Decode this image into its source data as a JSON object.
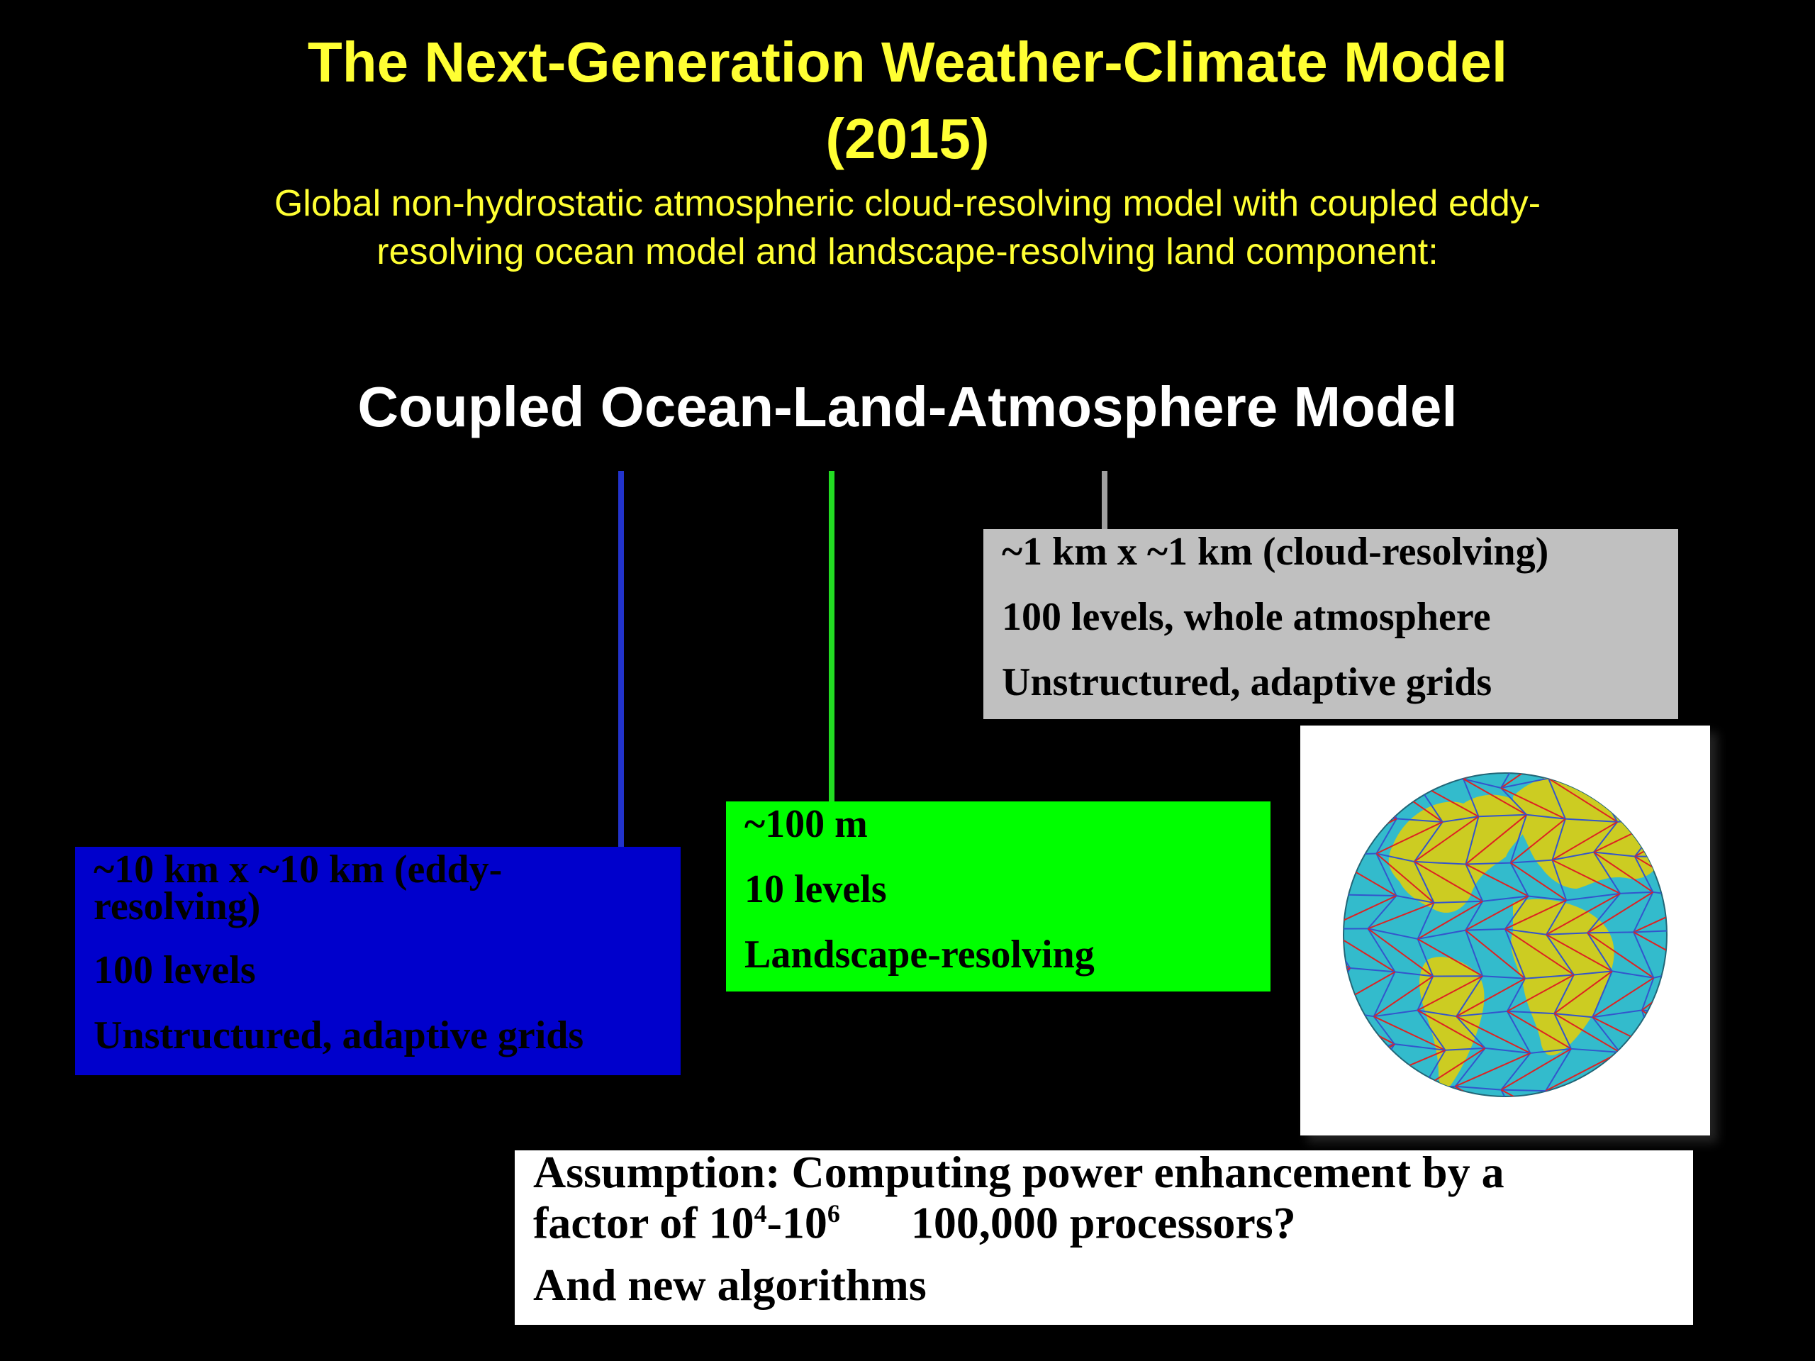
{
  "title": {
    "line1": "The Next-Generation Weather-Climate Model",
    "line2": "(2015)"
  },
  "subtitle": {
    "line1": "Global non-hydrostatic atmospheric cloud-resolving model with coupled eddy-",
    "line2": "resolving ocean model and landscape-resolving land component:"
  },
  "heading": "Coupled Ocean-Land-Atmosphere Model",
  "atmosphere_box": {
    "color": "#c0c0c0",
    "lines": [
      "~1 km x ~1 km (cloud-resolving)",
      "100 levels, whole atmosphere",
      "Unstructured, adaptive grids"
    ]
  },
  "land_box": {
    "color": "#00ff00",
    "lines": [
      "~100 m",
      "10 levels",
      "Landscape-resolving"
    ]
  },
  "ocean_box": {
    "color": "#0000cc",
    "lines": [
      "~10 km x ~10 km (eddy-",
      "resolving)",
      "100 levels",
      "Unstructured, adaptive grids"
    ]
  },
  "assumption_box": {
    "line1": "Assumption: Computing power enhancement by a",
    "line2_prefix": "factor of 10",
    "sup1": "4",
    "line2_mid": "-10",
    "sup2": "6",
    "line2_suffix": "100,000 processors?",
    "line3": "And new algorithms"
  },
  "globe_image": {
    "ocean_color": "#33bbcc",
    "land_color": "#cccc22",
    "grid_blue": "#3355cc",
    "grid_red": "#dd2222"
  }
}
